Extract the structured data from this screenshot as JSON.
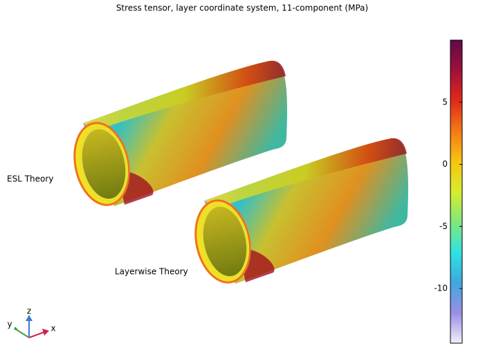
{
  "chart_data": {
    "type": "surface",
    "title": "Stress tensor, layer coordinate system, 11-component (MPa)",
    "annotations": [
      "ESL Theory",
      "Layerwise Theory"
    ],
    "triad": {
      "x": "x",
      "y": "y",
      "z": "z"
    },
    "colorbar": {
      "ylim": [
        -14.4,
        10
      ],
      "yticks": [
        -10,
        -5,
        0,
        5
      ],
      "colors": [
        "#f4eef8",
        "#9a8ee6",
        "#3ea8e0",
        "#2fe3e0",
        "#7fe87a",
        "#d8ec2c",
        "#f8c410",
        "#f47a14",
        "#e02a1a",
        "#a0103a",
        "#5e0a4a"
      ]
    }
  }
}
